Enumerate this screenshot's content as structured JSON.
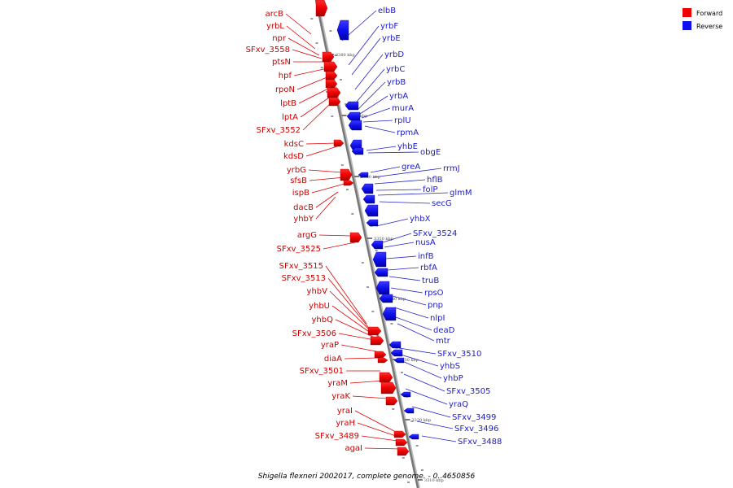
{
  "caption": "Shigella flexneri 2002017, complete genome. - 0..4650856",
  "legend": {
    "forward": {
      "label": "Forward",
      "color": "#ee0000"
    },
    "reverse": {
      "label": "Reverse",
      "color": "#1010ee"
    }
  },
  "ticks": [
    "3390 kbp",
    "3380 kbp",
    "3370 kbp",
    "3360 kbp",
    "3350 kbp",
    "3340 kbp",
    "3330 kbp",
    "3320 kbp",
    "3310 kbp"
  ],
  "forward_genes": [
    "arcB",
    "yrbL",
    "npr",
    "SFxv_3558",
    "ptsN",
    "hpf",
    "rpoN",
    "lptB",
    "lptA",
    "SFxv_3552",
    "kdsC",
    "kdsD",
    "yrbG",
    "sfsB",
    "ispB",
    "dacB",
    "yhbY",
    "argG",
    "SFxv_3525",
    "SFxv_3515",
    "SFxv_3513",
    "yhbV",
    "yhbU",
    "yhbQ",
    "SFxv_3506",
    "yraP",
    "diaA",
    "SFxv_3501",
    "yraM",
    "yraK",
    "yraI",
    "yraH",
    "SFxv_3489",
    "agaI"
  ],
  "reverse_genes": [
    "elbB",
    "yrbF",
    "yrbE",
    "yrbD",
    "yrbC",
    "yrbB",
    "yrbA",
    "murA",
    "rplU",
    "rpmA",
    "yhbE",
    "obgE",
    "greA",
    "rrmJ",
    "hflB",
    "folP",
    "glmM",
    "secG",
    "yhbX",
    "SFxv_3524",
    "nusA",
    "infB",
    "rbfA",
    "truB",
    "rpsO",
    "pnp",
    "nlpI",
    "deaD",
    "mtr",
    "SFxv_3510",
    "yhbS",
    "yhbP",
    "SFxv_3505",
    "yraQ",
    "SFxv_3499",
    "SFxv_3496",
    "SFxv_3488"
  ]
}
